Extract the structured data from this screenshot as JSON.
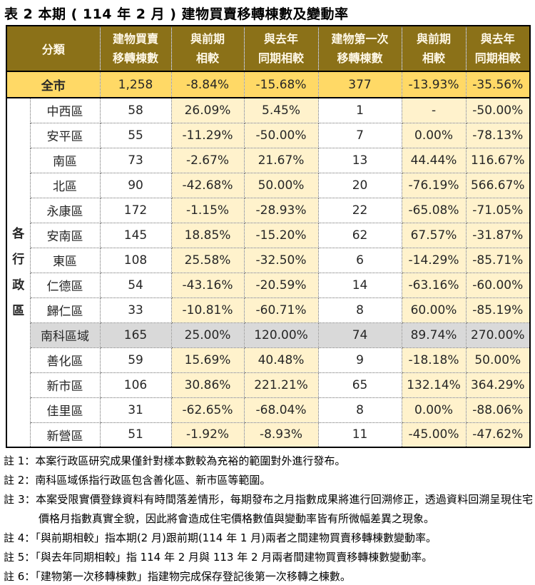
{
  "title": "表 2 本期 ( 114 年 2 月 ) 建物買賣移轉棟數及變動率",
  "colors": {
    "header_bg": "#8b7118",
    "header_text": "#fff8e7",
    "city_row_bg": "#ffd966",
    "pct_cell_bg": "#fff2cc",
    "highlight_row_bg": "#d9d9d9",
    "border": "#000000",
    "text": "#262626"
  },
  "table": {
    "row_group_label": "各行政區",
    "headers": {
      "category": "分類",
      "cols": [
        {
          "line1": "建物買賣",
          "line2": "移轉棟數"
        },
        {
          "line1": "與前期",
          "line2": "相較"
        },
        {
          "line1": "與去年",
          "line2": "同期相較"
        },
        {
          "line1": "建物第一次",
          "line2": "移轉棟數"
        },
        {
          "line1": "與前期",
          "line2": "相較"
        },
        {
          "line1": "與去年",
          "line2": "同期相較"
        }
      ]
    },
    "city_row": {
      "name": "全市",
      "values": [
        "1,258",
        "-8.84%",
        "-15.68%",
        "377",
        "-13.93%",
        "-35.56%"
      ]
    },
    "districts": [
      {
        "name": "中西區",
        "values": [
          "58",
          "26.09%",
          "5.45%",
          "1",
          "-",
          "-50.00%"
        ],
        "highlight": false
      },
      {
        "name": "安平區",
        "values": [
          "55",
          "-11.29%",
          "-50.00%",
          "7",
          "0.00%",
          "-78.13%"
        ],
        "highlight": false
      },
      {
        "name": "南區",
        "values": [
          "73",
          "-2.67%",
          "21.67%",
          "13",
          "44.44%",
          "116.67%"
        ],
        "highlight": false
      },
      {
        "name": "北區",
        "values": [
          "90",
          "-42.68%",
          "50.00%",
          "20",
          "-76.19%",
          "566.67%"
        ],
        "highlight": false
      },
      {
        "name": "永康區",
        "values": [
          "172",
          "-1.15%",
          "-28.93%",
          "22",
          "-65.08%",
          "-71.05%"
        ],
        "highlight": false
      },
      {
        "name": "安南區",
        "values": [
          "145",
          "18.85%",
          "-15.20%",
          "62",
          "67.57%",
          "-31.87%"
        ],
        "highlight": false
      },
      {
        "name": "東區",
        "values": [
          "108",
          "25.58%",
          "-32.50%",
          "6",
          "-14.29%",
          "-85.71%"
        ],
        "highlight": false
      },
      {
        "name": "仁德區",
        "values": [
          "54",
          "-43.16%",
          "-20.59%",
          "14",
          "-63.16%",
          "-60.00%"
        ],
        "highlight": false
      },
      {
        "name": "歸仁區",
        "values": [
          "33",
          "-10.81%",
          "-60.71%",
          "8",
          "60.00%",
          "-85.19%"
        ],
        "highlight": false
      },
      {
        "name": "南科區域",
        "values": [
          "165",
          "25.00%",
          "120.00%",
          "74",
          "89.74%",
          "270.00%"
        ],
        "highlight": true
      },
      {
        "name": "善化區",
        "values": [
          "59",
          "15.69%",
          "40.48%",
          "9",
          "-18.18%",
          "50.00%"
        ],
        "highlight": false
      },
      {
        "name": "新市區",
        "values": [
          "106",
          "30.86%",
          "221.21%",
          "65",
          "132.14%",
          "364.29%"
        ],
        "highlight": false
      },
      {
        "name": "佳里區",
        "values": [
          "31",
          "-62.65%",
          "-68.04%",
          "8",
          "0.00%",
          "-88.06%"
        ],
        "highlight": false
      },
      {
        "name": "新營區",
        "values": [
          "51",
          "-1.92%",
          "-8.93%",
          "11",
          "-45.00%",
          "-47.62%"
        ],
        "highlight": false
      }
    ]
  },
  "notes": [
    {
      "label": "註 1：",
      "text": "本案行政區研究成果僅針對樣本數較為充裕的範圍對外進行發布。"
    },
    {
      "label": "註 2：",
      "text": "南科區域係指行政區包含善化區、新市區等範圍。"
    },
    {
      "label": "註 3：",
      "text": "本案受限實價登錄資料有時間落差情形，每期發布之月指數成果將進行回溯修正，透過資料回溯呈現住宅價格月指數真實全貌，因此將會造成住宅價格數值與變動率皆有所微幅差異之現象。"
    },
    {
      "label": "註 4：",
      "text": "「與前期相較」指本期(2 月)跟前期(114 年 1 月)兩者之間建物買賣移轉棟數變動率。"
    },
    {
      "label": "註 5：",
      "text": "「與去年同期相較」指 114 年 2 月與 113 年 2 月兩者間建物買賣移轉棟數變動率。"
    },
    {
      "label": "註 6：",
      "text": "「建物第一次移轉棟數」指建物完成保存登記後第一次移轉之棟數。"
    }
  ]
}
